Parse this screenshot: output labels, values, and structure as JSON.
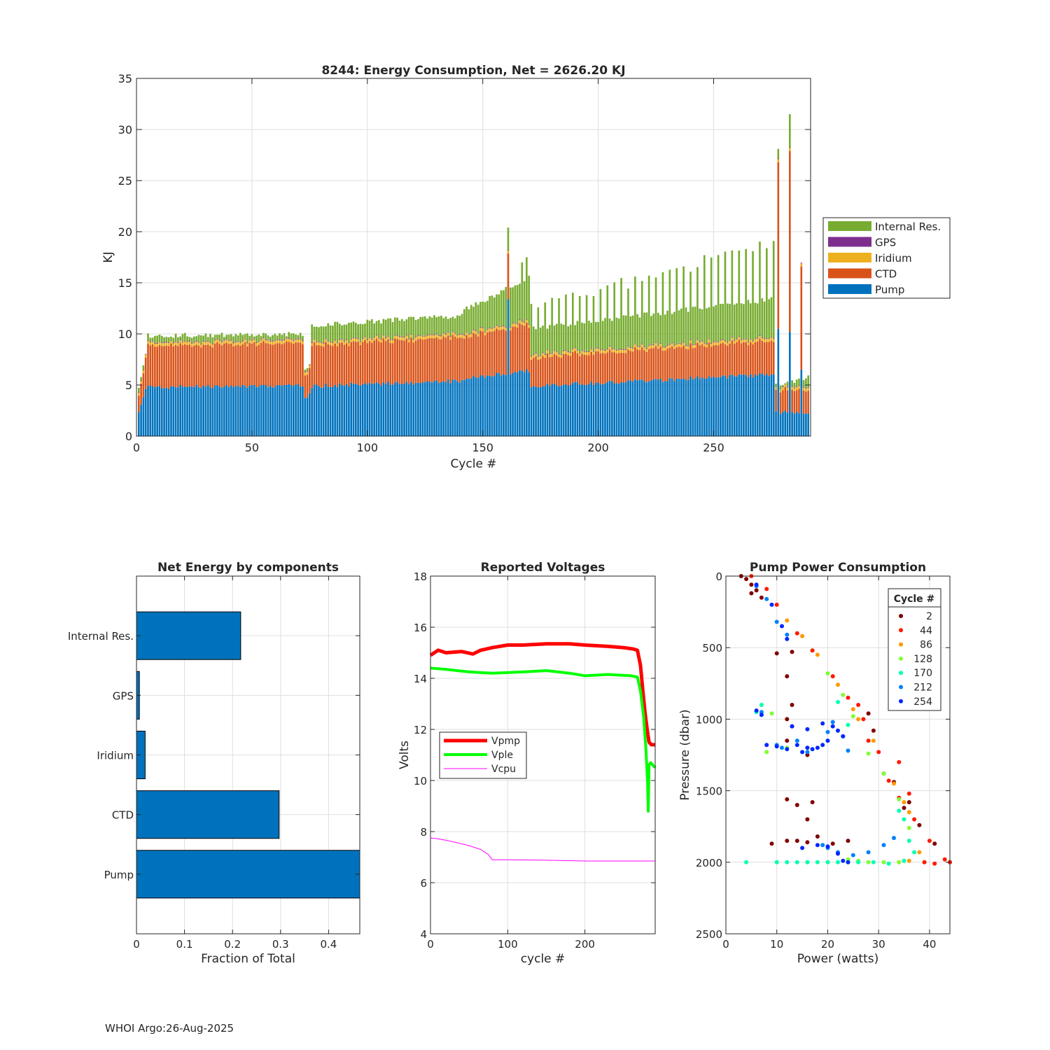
{
  "footer": {
    "text": "WHOI Argo:26-Aug-2025"
  },
  "chart_data": [
    {
      "id": "energy",
      "type": "bar",
      "stacked": true,
      "title": "8244: Energy Consumption,  Net = 2626.20 KJ",
      "xlabel": "Cycle #",
      "ylabel": "KJ",
      "xlim": [
        0,
        292
      ],
      "ylim": [
        0,
        35
      ],
      "xticks": [
        0,
        50,
        100,
        150,
        200,
        250
      ],
      "yticks": [
        0,
        5,
        10,
        15,
        20,
        25,
        30,
        35
      ],
      "grid": true,
      "legend_position": "right",
      "legend": [
        "Internal Res.",
        "GPS",
        "Iridium",
        "CTD",
        "Pump"
      ],
      "colors": {
        "Pump": "#0072BD",
        "CTD": "#D95319",
        "Iridium": "#EDB120",
        "GPS": "#7E2F8E",
        "Internal Res.": "#77AC30"
      },
      "cycles": "1..291",
      "phases": [
        {
          "cycles": [
            1,
            4
          ],
          "pump": [
            2.2,
            4.5
          ],
          "ctd": [
            1.5,
            3.0
          ],
          "total": [
            4.5,
            8.0
          ]
        },
        {
          "cycles": [
            5,
            72
          ],
          "pump": [
            4.8,
            4.9
          ],
          "ctd": [
            4.0,
            4.2
          ],
          "total": [
            9.8,
            10.0
          ]
        },
        {
          "cycles": [
            73,
            75
          ],
          "pump": [
            3.7,
            4.0
          ],
          "ctd": [
            2.2,
            2.5
          ],
          "total": [
            6.3,
            7.0
          ]
        },
        {
          "cycles": [
            76,
            140
          ],
          "pump": [
            4.9,
            5.4
          ],
          "ctd": [
            4.0,
            4.3
          ],
          "total": [
            10.8,
            11.8
          ]
        },
        {
          "cycles": [
            141,
            170
          ],
          "pump": [
            5.6,
            6.4
          ],
          "ctd": [
            4.1,
            4.5
          ],
          "total": [
            12.2,
            15.5
          ]
        },
        {
          "cycles": [
            171,
            276
          ],
          "pump": [
            4.9,
            6.0
          ],
          "ctd": [
            2.8,
            3.3
          ],
          "total": [
            10.5,
            13.4
          ]
        },
        {
          "cycles": [
            277,
            291
          ],
          "pump": [
            2.3,
            2.3
          ],
          "ctd": [
            2.1,
            2.3
          ],
          "total": [
            5.0,
            5.8
          ]
        }
      ],
      "spikes": [
        {
          "cycle": 161,
          "total": 20.4,
          "pump": 13.4
        },
        {
          "cycle": 167,
          "total": 17.0
        },
        {
          "cycle": 169,
          "total": 17.5
        },
        {
          "cycle": 278,
          "total": 28.1,
          "ctd": 16.3,
          "pump": 10.5
        },
        {
          "cycle": 283,
          "total": 31.5,
          "ctd": 17.7,
          "pump": 10.2
        },
        {
          "cycle": 288,
          "total": 16.2,
          "ctd": 10.1,
          "pump": 6.5
        }
      ]
    },
    {
      "id": "components",
      "type": "bar",
      "orientation": "horizontal",
      "title": "Net Energy by components",
      "xlabel": "Fraction of Total",
      "xlim": [
        0,
        0.465
      ],
      "xticks": [
        0,
        0.1,
        0.2,
        0.3,
        0.4
      ],
      "xtick_labels": [
        "0",
        "0.1",
        "0.2",
        "0.3",
        "0.4"
      ],
      "grid": true,
      "categories": [
        "Internal Res.",
        "GPS",
        "Iridium",
        "CTD",
        "Pump"
      ],
      "values": [
        0.217,
        0.006,
        0.018,
        0.297,
        0.465
      ],
      "color": "#0072BD"
    },
    {
      "id": "voltages",
      "type": "line",
      "title": "Reported Voltages",
      "xlabel": "cycle #",
      "ylabel": "Volts",
      "xlim": [
        0,
        291
      ],
      "ylim": [
        4,
        18
      ],
      "xticks": [
        0,
        100,
        200
      ],
      "yticks": [
        4,
        6,
        8,
        10,
        12,
        14,
        16,
        18
      ],
      "grid": true,
      "legend_position": "center-left",
      "series": [
        {
          "name": "Vpmp",
          "color": "#FF0000",
          "x": [
            0,
            10,
            20,
            40,
            55,
            65,
            80,
            100,
            120,
            150,
            180,
            200,
            230,
            250,
            262,
            268,
            272,
            275,
            278,
            281,
            283,
            286,
            291
          ],
          "y": [
            14.9,
            15.1,
            15.0,
            15.05,
            14.95,
            15.1,
            15.2,
            15.3,
            15.3,
            15.35,
            15.35,
            15.3,
            15.25,
            15.2,
            15.15,
            15.1,
            14.5,
            13.5,
            12.6,
            11.9,
            11.5,
            11.4,
            11.4
          ]
        },
        {
          "name": "Vple",
          "color": "#00FF00",
          "x": [
            0,
            20,
            50,
            80,
            120,
            150,
            180,
            200,
            230,
            260,
            268,
            272,
            276,
            279,
            281,
            282,
            283,
            285,
            288,
            291
          ],
          "y": [
            14.4,
            14.35,
            14.25,
            14.2,
            14.25,
            14.3,
            14.2,
            14.1,
            14.15,
            14.1,
            14.05,
            13.5,
            12.5,
            11.2,
            10.0,
            8.8,
            10.6,
            10.7,
            10.6,
            10.5
          ]
        },
        {
          "name": "Vcpu",
          "color": "#FF00FF",
          "x": [
            0,
            10,
            30,
            50,
            65,
            70,
            75,
            80,
            100,
            150,
            200,
            250,
            291
          ],
          "y": [
            7.75,
            7.72,
            7.6,
            7.45,
            7.3,
            7.2,
            7.1,
            6.9,
            6.9,
            6.88,
            6.85,
            6.85,
            6.85
          ]
        }
      ]
    },
    {
      "id": "pump_power",
      "type": "scatter",
      "title": "Pump Power Consumption",
      "xlabel": "Power (watts)",
      "ylabel": "Pressure (dbar)",
      "xlim": [
        0,
        44
      ],
      "ylim": [
        2500,
        0
      ],
      "y_reversed": true,
      "xticks": [
        0,
        10,
        20,
        30,
        40
      ],
      "yticks": [
        0,
        500,
        1000,
        1500,
        2000,
        2500
      ],
      "grid": true,
      "legend_title": "Cycle #",
      "legend_position": "top-right",
      "legend": [
        {
          "name": "2",
          "color": "#800000"
        },
        {
          "name": "44",
          "color": "#FF1A00"
        },
        {
          "name": "86",
          "color": "#FF9900"
        },
        {
          "name": "128",
          "color": "#80FF33"
        },
        {
          "name": "170",
          "color": "#00FFB3"
        },
        {
          "name": "212",
          "color": "#0080FF"
        },
        {
          "name": "254",
          "color": "#0026FF"
        }
      ],
      "groups": [
        {
          "color": "#800000",
          "points": [
            [
              3,
              0
            ],
            [
              4,
              20
            ],
            [
              5,
              60
            ],
            [
              6,
              100
            ],
            [
              5,
              120
            ],
            [
              7,
              150
            ],
            [
              13,
              530
            ],
            [
              10,
              540
            ],
            [
              12,
              700
            ],
            [
              13,
              900
            ],
            [
              12,
              1000
            ],
            [
              13,
              1050
            ],
            [
              12,
              1150
            ],
            [
              16,
              1250
            ],
            [
              12,
              1560
            ],
            [
              14,
              1600
            ],
            [
              17,
              1580
            ],
            [
              16,
              1700
            ],
            [
              12,
              1850
            ],
            [
              9,
              1870
            ],
            [
              14,
              1850
            ],
            [
              16,
              1860
            ],
            [
              18,
              1820
            ],
            [
              24,
              1850
            ],
            [
              21,
              1870
            ],
            [
              28,
              960
            ],
            [
              29,
              1080
            ],
            [
              31,
              1380
            ],
            [
              35,
              1620
            ],
            [
              38,
              1740
            ],
            [
              41,
              1870
            ],
            [
              44,
              2000
            ],
            [
              36,
              1580
            ],
            [
              33,
              1440
            ]
          ]
        },
        {
          "color": "#FF1A00",
          "points": [
            [
              5,
              0
            ],
            [
              8,
              90
            ],
            [
              10,
              200
            ],
            [
              14,
              400
            ],
            [
              17,
              520
            ],
            [
              21,
              700
            ],
            [
              24,
              850
            ],
            [
              27,
              1000
            ],
            [
              30,
              1230
            ],
            [
              32,
              1430
            ],
            [
              34,
              1550
            ],
            [
              37,
              1700
            ],
            [
              40,
              1850
            ],
            [
              43,
              1980
            ],
            [
              44,
              2000
            ],
            [
              39,
              2000
            ],
            [
              41,
              2010
            ],
            [
              34,
              1300
            ],
            [
              36,
              1520
            ],
            [
              26,
              900
            ],
            [
              28,
              1150
            ]
          ]
        },
        {
          "color": "#FF9900",
          "points": [
            [
              12,
              310
            ],
            [
              15,
              420
            ],
            [
              18,
              550
            ],
            [
              22,
              760
            ],
            [
              25,
              930
            ],
            [
              29,
              1150
            ],
            [
              33,
              1450
            ],
            [
              35,
              1580
            ],
            [
              36,
              1650
            ],
            [
              38,
              1930
            ],
            [
              34,
              2000
            ],
            [
              36,
              1990
            ],
            [
              26,
              1000
            ]
          ]
        },
        {
          "color": "#80FF33",
          "points": [
            [
              9,
              960
            ],
            [
              8,
              1230
            ],
            [
              12,
              1200
            ],
            [
              20,
              680
            ],
            [
              23,
              830
            ],
            [
              25,
              980
            ],
            [
              28,
              1240
            ],
            [
              31,
              1380
            ],
            [
              34,
              1560
            ],
            [
              36,
              1760
            ],
            [
              34,
              2000
            ],
            [
              31,
              2000
            ],
            [
              28,
              2000
            ],
            [
              26,
              1990
            ],
            [
              24,
              1980
            ],
            [
              20,
              2000
            ],
            [
              16,
              2000
            ]
          ]
        },
        {
          "color": "#00FFB3",
          "points": [
            [
              4,
              2000
            ],
            [
              10,
              2000
            ],
            [
              12,
              2000
            ],
            [
              14,
              2000
            ],
            [
              16,
              2000
            ],
            [
              18,
              2000
            ],
            [
              20,
              2000
            ],
            [
              22,
              2000
            ],
            [
              24,
              2000
            ],
            [
              26,
              2000
            ],
            [
              29,
              2000
            ],
            [
              32,
              2010
            ],
            [
              35,
              1990
            ],
            [
              37,
              1930
            ],
            [
              36,
              1850
            ],
            [
              35,
              1700
            ],
            [
              34,
              1640
            ],
            [
              22,
              880
            ],
            [
              24,
              1040
            ],
            [
              7,
              900
            ],
            [
              6,
              950
            ]
          ]
        },
        {
          "color": "#0080FF",
          "points": [
            [
              6,
              70
            ],
            [
              8,
              160
            ],
            [
              10,
              320
            ],
            [
              12,
              410
            ],
            [
              21,
              1020
            ],
            [
              23,
              1120
            ],
            [
              24,
              1220
            ],
            [
              20,
              1090
            ],
            [
              16,
              1230
            ],
            [
              10,
              1180
            ],
            [
              11,
              1200
            ],
            [
              14,
              1150
            ],
            [
              33,
              1830
            ],
            [
              31,
              1880
            ],
            [
              28,
              1930
            ],
            [
              25,
              1950
            ],
            [
              22,
              1930
            ],
            [
              20,
              1900
            ],
            [
              19,
              1880
            ],
            [
              7,
              950
            ]
          ]
        },
        {
          "color": "#0026FF",
          "points": [
            [
              6,
              60
            ],
            [
              9,
              200
            ],
            [
              11,
              350
            ],
            [
              12,
              440
            ],
            [
              8,
              1180
            ],
            [
              10,
              1190
            ],
            [
              12,
              1210
            ],
            [
              14,
              1180
            ],
            [
              15,
              1230
            ],
            [
              16,
              1200
            ],
            [
              17,
              1210
            ],
            [
              18,
              1200
            ],
            [
              19,
              1180
            ],
            [
              20,
              1150
            ],
            [
              21,
              1050
            ],
            [
              22,
              1080
            ],
            [
              23,
              1120
            ],
            [
              19,
              1030
            ],
            [
              16,
              1070
            ],
            [
              13,
              1050
            ],
            [
              20,
              1890
            ],
            [
              22,
              1940
            ],
            [
              23,
              1990
            ],
            [
              18,
              1880
            ],
            [
              24,
              2000
            ],
            [
              15,
              1900
            ],
            [
              6,
              940
            ],
            [
              7,
              970
            ]
          ]
        }
      ]
    }
  ]
}
